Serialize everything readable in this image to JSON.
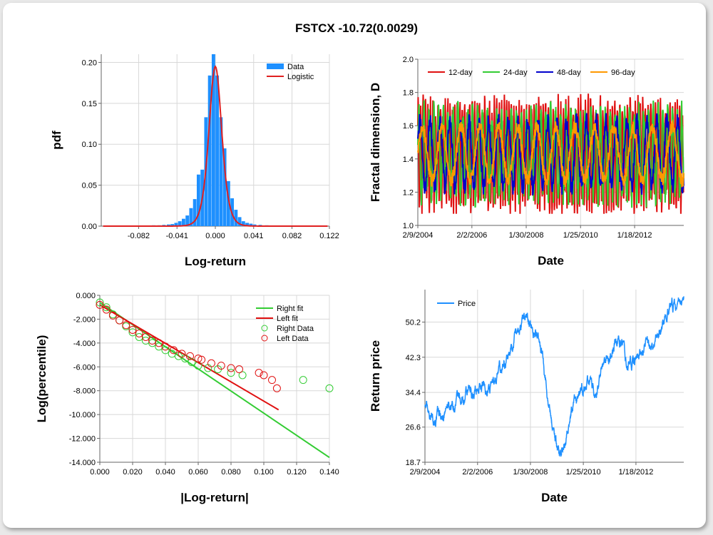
{
  "title": "FSTCX -10.72(0.0029)",
  "chart_data": [
    {
      "type": "bar",
      "name": "pdf-histogram",
      "xlabel": "Log-return",
      "ylabel": "pdf",
      "xlim": [
        -0.122,
        0.122
      ],
      "ylim": [
        0,
        0.21
      ],
      "xticks": [
        -0.082,
        -0.041,
        0.0,
        0.041,
        0.082,
        0.122
      ],
      "xtick_labels": [
        "-0.082",
        "-0.041",
        "0.000",
        "0.041",
        "0.082",
        "0.122"
      ],
      "yticks": [
        0,
        0.05,
        0.1,
        0.15,
        0.2
      ],
      "ytick_labels": [
        "0.00",
        "0.05",
        "0.10",
        "0.15",
        "0.20"
      ],
      "legend": [
        "Data",
        "Logistic"
      ],
      "legend_position": "top-right",
      "colors": {
        "bars": "#1e90ff",
        "fit": "#e02020"
      },
      "bins": [
        [
          -0.1,
          0.0005
        ],
        [
          -0.09,
          0.0005
        ],
        [
          -0.08,
          0.0005
        ],
        [
          -0.072,
          0.0006
        ],
        [
          -0.066,
          0.001
        ],
        [
          -0.06,
          0.001
        ],
        [
          -0.055,
          0.0015
        ],
        [
          -0.05,
          0.002
        ],
        [
          -0.046,
          0.0025
        ],
        [
          -0.042,
          0.004
        ],
        [
          -0.038,
          0.006
        ],
        [
          -0.034,
          0.009
        ],
        [
          -0.03,
          0.013
        ],
        [
          -0.026,
          0.022
        ],
        [
          -0.022,
          0.033
        ],
        [
          -0.018,
          0.063
        ],
        [
          -0.014,
          0.069
        ],
        [
          -0.01,
          0.133
        ],
        [
          -0.006,
          0.184
        ],
        [
          -0.002,
          0.21
        ],
        [
          0.002,
          0.184
        ],
        [
          0.006,
          0.133
        ],
        [
          0.01,
          0.095
        ],
        [
          0.014,
          0.055
        ],
        [
          0.018,
          0.034
        ],
        [
          0.022,
          0.02
        ],
        [
          0.026,
          0.011
        ],
        [
          0.03,
          0.006
        ],
        [
          0.034,
          0.004
        ],
        [
          0.038,
          0.003
        ],
        [
          0.042,
          0.002
        ],
        [
          0.048,
          0.0015
        ],
        [
          0.055,
          0.001
        ],
        [
          0.065,
          0.0008
        ],
        [
          0.08,
          0.0005
        ],
        [
          0.1,
          0.0005
        ]
      ],
      "fit_loc": 0.0,
      "fit_peak": 0.195,
      "fit_scale": 0.0046
    },
    {
      "type": "line",
      "name": "fractal-dimension",
      "xlabel": "Date",
      "ylabel": "Fractal dimension, D",
      "xlim": [
        2004.11,
        2013.85
      ],
      "ylim": [
        1.0,
        2.0
      ],
      "xticks": [
        2004.11,
        2006.09,
        2008.08,
        2010.07,
        2012.05
      ],
      "xtick_labels": [
        "2/9/2004",
        "2/2/2006",
        "1/30/2008",
        "1/25/2010",
        "1/18/2012"
      ],
      "yticks": [
        1.0,
        1.2,
        1.4,
        1.6,
        1.8,
        2.0
      ],
      "ytick_labels": [
        "1.0",
        "1.2",
        "1.4",
        "1.6",
        "1.8",
        "2.0"
      ],
      "legend_position": "top-left",
      "series": [
        {
          "name": "12-day",
          "color": "#e01010",
          "seed": 11,
          "period": 0.09,
          "amp": 0.3
        },
        {
          "name": "24-day",
          "color": "#33cc33",
          "seed": 23,
          "period": 0.18,
          "amp": 0.26
        },
        {
          "name": "48-day",
          "color": "#0000cc",
          "seed": 37,
          "period": 0.36,
          "amp": 0.2
        },
        {
          "name": "96-day",
          "color": "#ff9900",
          "seed": 51,
          "period": 0.7,
          "amp": 0.16
        }
      ]
    },
    {
      "type": "scatter",
      "name": "log-percentile",
      "xlabel": "|Log-return|",
      "ylabel": "Log(percentile)",
      "xlim": [
        0,
        0.14
      ],
      "ylim": [
        -14,
        0
      ],
      "xticks": [
        0,
        0.02,
        0.04,
        0.06,
        0.08,
        0.1,
        0.12,
        0.14
      ],
      "xtick_labels": [
        "0.000",
        "0.020",
        "0.040",
        "0.060",
        "0.080",
        "0.100",
        "0.120",
        "0.140"
      ],
      "yticks": [
        0,
        -2,
        -4,
        -6,
        -8,
        -10,
        -12,
        -14
      ],
      "ytick_labels": [
        "0.000",
        "-2.000",
        "-4.000",
        "-6.000",
        "-8.000",
        "-10.000",
        "-12.000",
        "-14.000"
      ],
      "legend": [
        "Right fit",
        "Left fit",
        "Right Data",
        "Left Data"
      ],
      "legend_position": "top-right",
      "right_fit": {
        "color": "#33cc33",
        "x": [
          0.0,
          0.14
        ],
        "y": [
          -0.6,
          -13.6
        ]
      },
      "left_fit": {
        "color": "#e01010",
        "x": [
          0.0,
          0.109
        ],
        "y": [
          -0.8,
          -9.6
        ]
      },
      "right_data": {
        "color": "#33cc33",
        "points": [
          [
            0.0,
            -0.6
          ],
          [
            0.004,
            -1.0
          ],
          [
            0.008,
            -1.6
          ],
          [
            0.012,
            -2.1
          ],
          [
            0.016,
            -2.6
          ],
          [
            0.02,
            -3.1
          ],
          [
            0.024,
            -3.5
          ],
          [
            0.028,
            -3.8
          ],
          [
            0.032,
            -4.0
          ],
          [
            0.036,
            -4.3
          ],
          [
            0.04,
            -4.6
          ],
          [
            0.044,
            -4.9
          ],
          [
            0.048,
            -5.1
          ],
          [
            0.052,
            -5.3
          ],
          [
            0.056,
            -5.6
          ],
          [
            0.06,
            -5.9
          ],
          [
            0.066,
            -6.1
          ],
          [
            0.072,
            -6.2
          ],
          [
            0.08,
            -6.5
          ],
          [
            0.087,
            -6.7
          ],
          [
            0.124,
            -7.1
          ],
          [
            0.14,
            -7.8
          ]
        ]
      },
      "left_data": {
        "color": "#e01010",
        "points": [
          [
            0.0,
            -0.8
          ],
          [
            0.004,
            -1.2
          ],
          [
            0.008,
            -1.7
          ],
          [
            0.012,
            -2.1
          ],
          [
            0.016,
            -2.5
          ],
          [
            0.02,
            -2.9
          ],
          [
            0.024,
            -3.2
          ],
          [
            0.028,
            -3.5
          ],
          [
            0.032,
            -3.8
          ],
          [
            0.036,
            -4.0
          ],
          [
            0.04,
            -4.3
          ],
          [
            0.045,
            -4.6
          ],
          [
            0.05,
            -4.9
          ],
          [
            0.055,
            -5.1
          ],
          [
            0.06,
            -5.3
          ],
          [
            0.062,
            -5.4
          ],
          [
            0.068,
            -5.7
          ],
          [
            0.074,
            -5.9
          ],
          [
            0.08,
            -6.1
          ],
          [
            0.085,
            -6.2
          ],
          [
            0.097,
            -6.5
          ],
          [
            0.1,
            -6.7
          ],
          [
            0.105,
            -7.1
          ],
          [
            0.108,
            -7.8
          ]
        ]
      }
    },
    {
      "type": "line",
      "name": "return-price",
      "xlabel": "Date",
      "ylabel": "Return price",
      "xlim": [
        2004.11,
        2013.85
      ],
      "ylim": [
        18.7,
        57.5
      ],
      "xticks": [
        2004.11,
        2006.09,
        2008.08,
        2010.07,
        2012.05
      ],
      "xtick_labels": [
        "2/9/2004",
        "2/2/2006",
        "1/30/2008",
        "1/25/2010",
        "1/18/2012"
      ],
      "yticks": [
        18.7,
        26.6,
        34.4,
        42.3,
        50.2
      ],
      "ytick_labels": [
        "18.7",
        "26.6",
        "34.4",
        "42.3",
        "50.2"
      ],
      "legend_position": "top-left",
      "series": [
        {
          "name": "Price",
          "color": "#1e90ff",
          "anchors": [
            [
              2004.11,
              32.0
            ],
            [
              2004.45,
              29.5
            ],
            [
              2004.75,
              29.0
            ],
            [
              2005.1,
              31.5
            ],
            [
              2005.5,
              32.5
            ],
            [
              2005.9,
              34.0
            ],
            [
              2006.3,
              36.5
            ],
            [
              2006.55,
              35.0
            ],
            [
              2006.9,
              39.0
            ],
            [
              2007.2,
              42.0
            ],
            [
              2007.45,
              46.5
            ],
            [
              2007.7,
              50.0
            ],
            [
              2007.9,
              52.5
            ],
            [
              2008.05,
              49.5
            ],
            [
              2008.3,
              47.5
            ],
            [
              2008.55,
              43.0
            ],
            [
              2008.75,
              33.0
            ],
            [
              2008.95,
              26.0
            ],
            [
              2009.2,
              20.0
            ],
            [
              2009.4,
              24.0
            ],
            [
              2009.7,
              31.0
            ],
            [
              2010.0,
              34.5
            ],
            [
              2010.3,
              37.0
            ],
            [
              2010.5,
              34.0
            ],
            [
              2010.8,
              39.0
            ],
            [
              2011.1,
              43.5
            ],
            [
              2011.35,
              47.0
            ],
            [
              2011.5,
              45.5
            ],
            [
              2011.7,
              41.0
            ],
            [
              2011.9,
              40.5
            ],
            [
              2012.2,
              44.0
            ],
            [
              2012.5,
              45.5
            ],
            [
              2012.8,
              47.0
            ],
            [
              2013.1,
              50.5
            ],
            [
              2013.4,
              52.5
            ],
            [
              2013.6,
              54.0
            ],
            [
              2013.85,
              57.3
            ]
          ]
        }
      ]
    }
  ]
}
